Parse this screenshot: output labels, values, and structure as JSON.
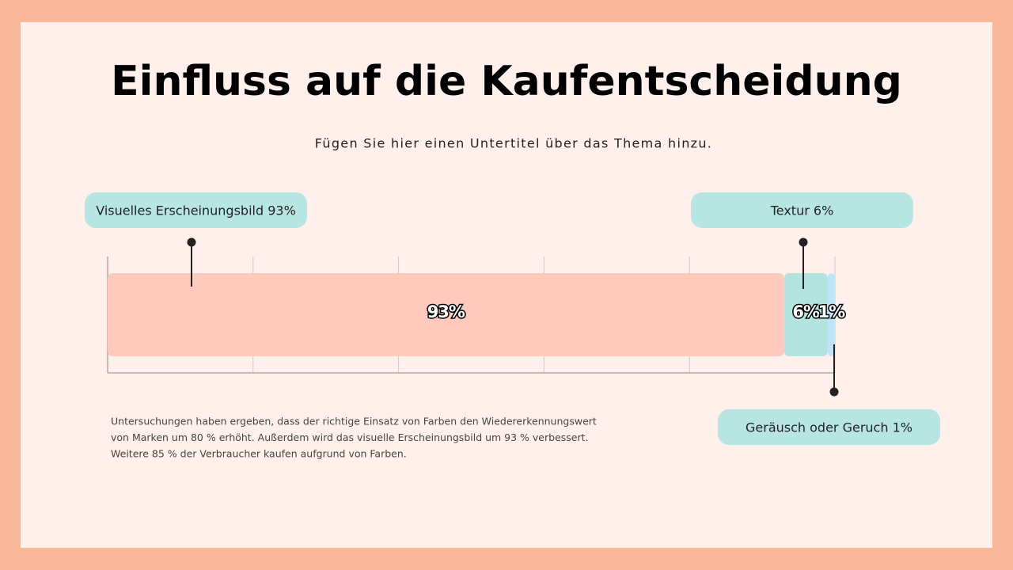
{
  "chart_data": {
    "type": "stacked-bar",
    "title": "Einfluss auf die Kaufentscheidung",
    "subtitle": "Fügen Sie hier einen Untertitel über das Thema hinzu.",
    "xlim": [
      0,
      100
    ],
    "xticks": [
      0,
      20,
      40,
      60,
      80,
      100
    ],
    "grid": true,
    "series": [
      {
        "name": "Visuelles Erscheinungsbild 93%",
        "color": "#ffc9bd",
        "values": [
          93
        ],
        "value_labels": [
          "93%"
        ]
      },
      {
        "name": "Textur 6%",
        "color": "#b4e4e0",
        "values": [
          6
        ],
        "value_labels": [
          "6%"
        ]
      },
      {
        "name": "Geräusch oder Geruch 1%",
        "color": "#bfe4f7",
        "values": [
          1
        ],
        "value_labels": [
          "1%"
        ]
      }
    ],
    "callout_color": "#b7e6e2",
    "footnote": [
      "Untersuchungen haben ergeben, dass der richtige Einsatz von Farben den Wiedererkennungswert",
      "von Marken um 80 % erhöht. Außerdem wird das visuelle Erscheinungsbild um 93 % verbessert.",
      "Weitere 85 % der Verbraucher kaufen aufgrund von Farben."
    ]
  }
}
